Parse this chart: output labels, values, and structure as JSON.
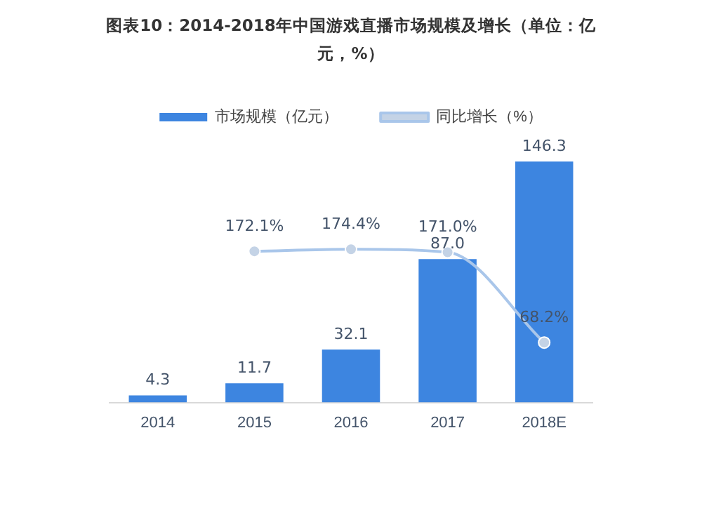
{
  "chart_data": {
    "type": "bar",
    "title": "图表10：2014-2018年中国游戏直播市场规模及增长（单位：亿元，%）",
    "categories": [
      "2014",
      "2015",
      "2016",
      "2017",
      "2018E"
    ],
    "series": [
      {
        "name": "市场规模（亿元）",
        "type": "bar",
        "color": "#3d85e0",
        "values": [
          4.3,
          11.7,
          32.1,
          87.0,
          146.3
        ],
        "value_labels": [
          "4.3",
          "11.7",
          "32.1",
          "87.0",
          "146.3"
        ]
      },
      {
        "name": "同比增长（%）",
        "type": "line",
        "axis": "y2",
        "color": "#a9c6ea",
        "values": [
          null,
          172.1,
          174.4,
          171.0,
          68.2
        ],
        "value_labels": [
          null,
          "172.1%",
          "174.4%",
          "171.0%",
          "68.2%"
        ]
      }
    ],
    "tick_labels": "x",
    "legend": "top",
    "grid": false,
    "marker": "circle"
  }
}
